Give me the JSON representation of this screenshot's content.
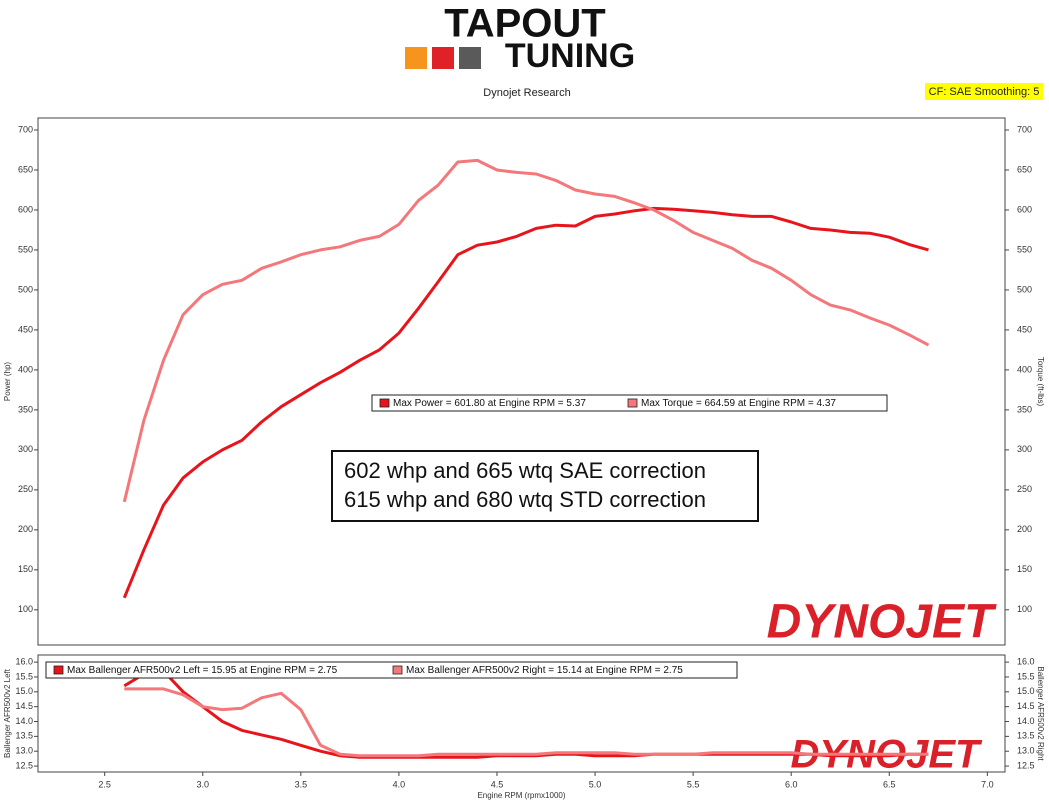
{
  "header": {
    "logo_top": "TAPOUT",
    "logo_bottom": "TUNING",
    "subtitle": "Dynojet Research",
    "cf_label": "CF: SAE Smoothing: 5"
  },
  "chart_data": [
    {
      "type": "line",
      "ylabel": "Power (hp)",
      "y2label": "Torque (ft-lbs)",
      "annotations": [
        "602 whp and 665 wtq SAE correction",
        "615 whp and 680 wtq STD correction"
      ],
      "watermark": "DYNOJET",
      "xlim": [
        2.16,
        7.09
      ],
      "ylim": [
        56,
        715
      ],
      "yticks": [
        100,
        150,
        200,
        250,
        300,
        350,
        400,
        450,
        500,
        550,
        600,
        650,
        700
      ],
      "y2lim": [
        56,
        715
      ],
      "y2ticks": [
        100,
        150,
        200,
        250,
        300,
        350,
        400,
        450,
        500,
        550,
        600,
        650,
        700
      ],
      "x": [
        2.6,
        2.7,
        2.8,
        2.9,
        3.0,
        3.1,
        3.2,
        3.3,
        3.4,
        3.5,
        3.6,
        3.7,
        3.8,
        3.9,
        4.0,
        4.1,
        4.2,
        4.3,
        4.4,
        4.5,
        4.6,
        4.7,
        4.8,
        4.9,
        5.0,
        5.1,
        5.2,
        5.3,
        5.4,
        5.5,
        5.6,
        5.7,
        5.8,
        5.9,
        6.0,
        6.1,
        6.2,
        6.3,
        6.4,
        6.5,
        6.6,
        6.7
      ],
      "series": [
        {
          "name": "Max Power = 601.80 at Engine RPM = 5.37",
          "color": "#e8141c",
          "values": [
            115,
            175,
            231,
            265,
            285,
            300,
            312,
            335,
            354,
            369,
            384,
            397,
            412,
            425,
            446,
            477,
            510,
            544,
            556,
            560,
            567,
            577,
            581,
            580,
            592,
            595,
            599,
            602,
            601,
            599,
            597,
            594,
            592,
            592,
            585,
            577,
            575,
            572,
            571,
            566,
            557,
            550
          ]
        },
        {
          "name": "Max Torque = 664.59 at Engine RPM = 4.37",
          "color": "#f4777a",
          "axis": "y2",
          "values": [
            235,
            337,
            412,
            469,
            494,
            507,
            512,
            527,
            535,
            544,
            550,
            554,
            562,
            567,
            582,
            612,
            631,
            660,
            662,
            650,
            647,
            645,
            637,
            625,
            620,
            617,
            609,
            600,
            587,
            572,
            562,
            552,
            537,
            527,
            512,
            494,
            481,
            475,
            465,
            456,
            444,
            431
          ]
        }
      ]
    },
    {
      "type": "line",
      "xlabel": "Engine RPM (rpmx1000)",
      "ylabel": "Ballenger AFR500v2 Left",
      "y2label": "Ballenger AFR500v2 Right",
      "watermark": "DYNOJET",
      "xlim": [
        2.16,
        7.09
      ],
      "xticks": [
        2.5,
        {
          "value": 3,
          "label": "3.0"
        },
        3.5,
        {
          "value": 4,
          "label": "4.0"
        },
        4.5,
        {
          "value": 5,
          "label": "5.0"
        },
        5.5,
        {
          "value": 6,
          "label": "6.0"
        },
        6.5,
        {
          "value": 7,
          "label": "7.0"
        }
      ],
      "ylim": [
        12.3,
        16.24
      ],
      "yticks": [
        {
          "value": 16,
          "label": "16.0"
        },
        15.5,
        {
          "value": 15,
          "label": "15.0"
        },
        14.5,
        {
          "value": 14,
          "label": "14.0"
        },
        13.5,
        {
          "value": 13,
          "label": "13.0"
        },
        12.5
      ],
      "y2lim": [
        12.3,
        16.24
      ],
      "y2ticks": [
        {
          "value": 16,
          "label": "16.0"
        },
        15.5,
        {
          "value": 15,
          "label": "15.0"
        },
        14.5,
        {
          "value": 14,
          "label": "14.0"
        },
        13.5,
        {
          "value": 13,
          "label": "13.0"
        },
        12.5
      ],
      "x": [
        2.6,
        2.7,
        2.8,
        2.9,
        3.0,
        3.1,
        3.2,
        3.3,
        3.4,
        3.5,
        3.6,
        3.7,
        3.8,
        3.9,
        4.0,
        4.1,
        4.2,
        4.3,
        4.4,
        4.5,
        4.6,
        4.7,
        4.8,
        4.9,
        5.0,
        5.1,
        5.2,
        5.3,
        5.4,
        5.5,
        5.6,
        5.7,
        5.8,
        5.9,
        6.0,
        6.1,
        6.2,
        6.3,
        6.4,
        6.5,
        6.6,
        6.7
      ],
      "series": [
        {
          "name": "Max Ballenger AFR500v2 Left = 15.95 at Engine RPM = 2.75",
          "color": "#e8141c",
          "values": [
            15.2,
            15.6,
            15.7,
            15.0,
            14.5,
            14.0,
            13.7,
            13.55,
            13.4,
            13.2,
            13.0,
            12.85,
            12.8,
            12.8,
            12.8,
            12.8,
            12.8,
            12.8,
            12.8,
            12.85,
            12.85,
            12.85,
            12.9,
            12.9,
            12.85,
            12.85,
            12.85,
            12.9,
            12.9,
            12.9,
            12.9,
            12.9,
            12.9,
            12.9,
            12.9,
            12.9,
            12.85,
            12.85,
            12.85,
            12.85,
            12.9,
            12.9
          ]
        },
        {
          "name": "Max Ballenger AFR500v2 Right = 15.14 at Engine RPM = 2.75",
          "color": "#f4777a",
          "axis": "y2",
          "values": [
            15.1,
            15.1,
            15.1,
            14.9,
            14.5,
            14.4,
            14.45,
            14.8,
            14.95,
            14.4,
            13.2,
            12.9,
            12.85,
            12.85,
            12.85,
            12.85,
            12.9,
            12.9,
            12.9,
            12.9,
            12.9,
            12.9,
            12.95,
            12.95,
            12.95,
            12.95,
            12.9,
            12.9,
            12.9,
            12.9,
            12.95,
            12.95,
            12.95,
            12.95,
            12.95,
            12.9,
            12.9,
            12.9,
            12.9,
            12.9,
            12.9,
            12.9
          ]
        }
      ]
    }
  ]
}
